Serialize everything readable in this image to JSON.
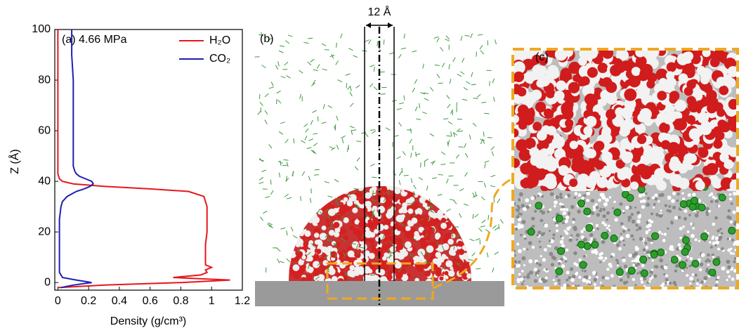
{
  "chart_data": {
    "type": "line",
    "annotation": "(a)  4.66 MPa",
    "x_label": "Density (g/cm³)",
    "y_label": "Z (Å)",
    "y": [
      -2,
      -1,
      0,
      1,
      2,
      3,
      4,
      5,
      6,
      7,
      8,
      10,
      15,
      20,
      25,
      30,
      32,
      34,
      36,
      37,
      38,
      39,
      40,
      41,
      42,
      43,
      44,
      46,
      50,
      60,
      70,
      80,
      90,
      100
    ],
    "series": [
      {
        "name": "H₂O",
        "color": "#e8161b",
        "values": [
          0,
          0.3,
          0.8,
          1.12,
          0.75,
          0.93,
          0.97,
          0.96,
          1.0,
          0.96,
          0.96,
          0.96,
          0.96,
          0.97,
          0.97,
          0.97,
          0.96,
          0.95,
          0.85,
          0.6,
          0.3,
          0.1,
          0.03,
          0.01,
          0.005,
          0,
          0,
          0,
          0,
          0,
          0,
          0,
          0,
          0
        ]
      },
      {
        "name": "CO₂",
        "color": "#1f1fb4",
        "values": [
          0.02,
          0.1,
          0.22,
          0.12,
          0.03,
          0.02,
          0.01,
          0.01,
          0.01,
          0.01,
          0.01,
          0.01,
          0.01,
          0.01,
          0.01,
          0.02,
          0.03,
          0.06,
          0.12,
          0.17,
          0.21,
          0.23,
          0.22,
          0.18,
          0.14,
          0.12,
          0.11,
          0.1,
          0.1,
          0.1,
          0.1,
          0.1,
          0.09,
          0.09
        ]
      }
    ],
    "xlim": [
      -0.02,
      1.2
    ],
    "xticks": [
      0,
      0.2,
      0.4,
      0.6,
      0.8,
      1.0,
      1.2
    ],
    "ylim": [
      -3,
      100
    ],
    "yticks": [
      0,
      20,
      40,
      60,
      80,
      100
    ],
    "legend": "upper right"
  },
  "panels": {
    "b_label": "(b)",
    "width_label": "12 Å",
    "c_label": "(c)"
  }
}
